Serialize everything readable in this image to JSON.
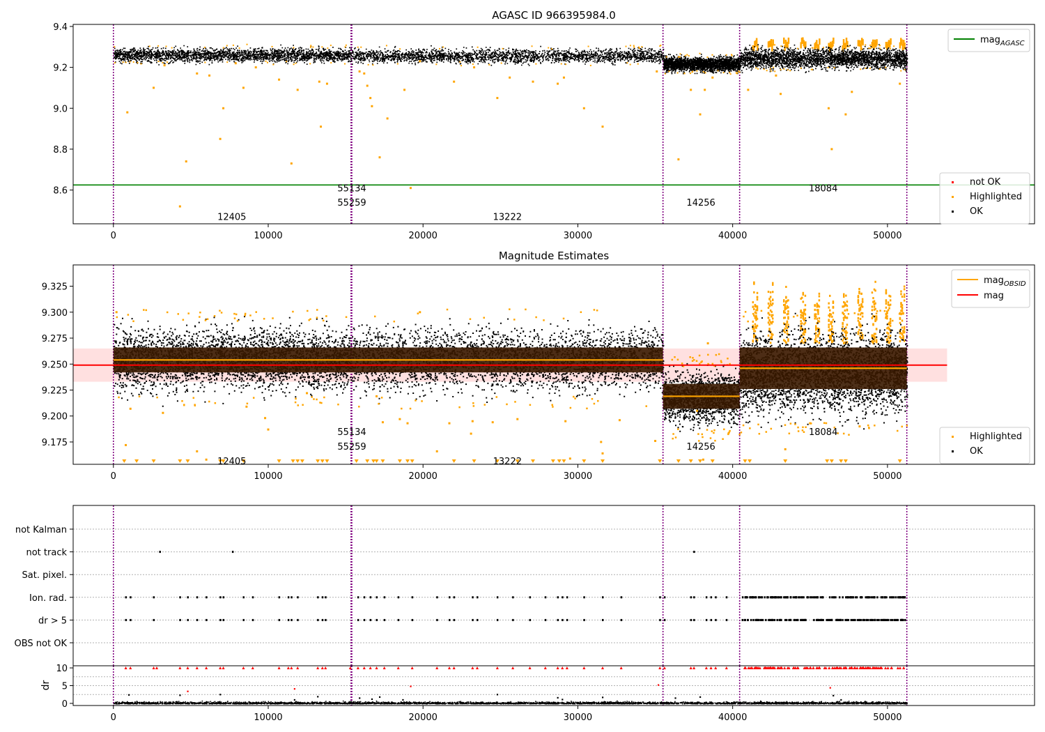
{
  "figure": {
    "background": "#ffffff"
  },
  "chart_data": [
    {
      "id": "agasc",
      "type": "scatter",
      "title": "AGASC ID 966395984.0",
      "xlim": [
        -2600,
        59500
      ],
      "ylim": [
        8.435,
        9.41
      ],
      "yticks": [
        "8.6",
        "8.8",
        "9.0",
        "9.2",
        "9.4"
      ],
      "ytick_values": [
        8.6,
        8.8,
        9.0,
        9.2,
        9.4
      ],
      "xticks": [
        "0",
        "10000",
        "20000",
        "30000",
        "40000",
        "50000"
      ],
      "xtick_values": [
        0,
        10000,
        20000,
        30000,
        40000,
        50000
      ],
      "vlines": [
        0,
        15350,
        15400,
        35500,
        40450,
        51250
      ],
      "hline": {
        "name": "mag$_{AGASC}$",
        "label": "mag",
        "sub": "AGASC",
        "value": 8.625,
        "color": "#008000"
      },
      "bands": [
        {
          "x0": 0,
          "x1": 15350,
          "center": 9.262,
          "width": 0.035
        },
        {
          "x0": 15400,
          "x1": 35500,
          "center": 9.258,
          "width": 0.035
        },
        {
          "x0": 35500,
          "x1": 40450,
          "center": 9.218,
          "width": 0.035
        },
        {
          "x0": 40450,
          "x1": 51250,
          "center": 9.245,
          "width": 0.05
        }
      ],
      "highlighted_points": [
        [
          900,
          8.98
        ],
        [
          2600,
          9.1
        ],
        [
          3300,
          9.21
        ],
        [
          4300,
          8.52
        ],
        [
          4700,
          8.74
        ],
        [
          5400,
          9.17
        ],
        [
          6200,
          9.16
        ],
        [
          6900,
          8.85
        ],
        [
          7100,
          9.0
        ],
        [
          7900,
          9.22
        ],
        [
          8400,
          9.1
        ],
        [
          9200,
          9.2
        ],
        [
          10700,
          9.14
        ],
        [
          11500,
          8.73
        ],
        [
          11900,
          9.09
        ],
        [
          13300,
          9.13
        ],
        [
          13400,
          8.91
        ],
        [
          13800,
          9.12
        ],
        [
          15900,
          9.18
        ],
        [
          16200,
          9.17
        ],
        [
          16400,
          9.11
        ],
        [
          16600,
          9.05
        ],
        [
          17200,
          8.76
        ],
        [
          16700,
          9.01
        ],
        [
          17700,
          8.95
        ],
        [
          18800,
          9.09
        ],
        [
          19200,
          8.61
        ],
        [
          19800,
          9.23
        ],
        [
          22000,
          9.13
        ],
        [
          23300,
          9.2
        ],
        [
          24800,
          9.05
        ],
        [
          25600,
          9.15
        ],
        [
          27100,
          9.13
        ],
        [
          28700,
          9.12
        ],
        [
          29100,
          9.15
        ],
        [
          30400,
          9.0
        ],
        [
          31600,
          8.91
        ],
        [
          35100,
          9.18
        ],
        [
          36500,
          8.75
        ],
        [
          37300,
          9.09
        ],
        [
          37900,
          8.97
        ],
        [
          38200,
          9.09
        ],
        [
          38700,
          9.15
        ],
        [
          41000,
          9.09
        ],
        [
          42800,
          9.16
        ],
        [
          43100,
          9.07
        ],
        [
          46200,
          9.0
        ],
        [
          46400,
          8.8
        ],
        [
          47300,
          8.97
        ],
        [
          47700,
          9.08
        ],
        [
          50800,
          9.12
        ]
      ],
      "annotations": [
        {
          "text": "12405",
          "x": 7650,
          "y": 8.47
        },
        {
          "text": "55134",
          "x": 15400,
          "y": 8.61
        },
        {
          "text": "55259",
          "x": 15400,
          "y": 8.54
        },
        {
          "text": "13222",
          "x": 25450,
          "y": 8.47
        },
        {
          "text": "14256",
          "x": 37950,
          "y": 8.54
        },
        {
          "text": "18084",
          "x": 45850,
          "y": 8.61
        }
      ],
      "legend_line": {
        "entries": [
          {
            "label": "mag",
            "sub": "AGASC",
            "color": "#008000"
          }
        ]
      },
      "legend_points": {
        "entries": [
          {
            "label": "not OK",
            "color": "#ff0000"
          },
          {
            "label": "Highlighted",
            "color": "#ffa500"
          },
          {
            "label": "OK",
            "color": "#000000"
          }
        ]
      }
    },
    {
      "id": "estimates",
      "type": "scatter",
      "title": "Magnitude Estimates",
      "xlim": [
        -2600,
        59500
      ],
      "ylim": [
        9.1535,
        9.3455
      ],
      "yticks": [
        "9.175",
        "9.200",
        "9.225",
        "9.250",
        "9.275",
        "9.300",
        "9.325"
      ],
      "ytick_values": [
        9.175,
        9.2,
        9.225,
        9.25,
        9.275,
        9.3,
        9.325
      ],
      "xticks": [
        "0",
        "10000",
        "20000",
        "30000",
        "40000",
        "50000"
      ],
      "xtick_values": [
        0,
        10000,
        20000,
        30000,
        40000,
        50000
      ],
      "vlines": [
        0,
        15350,
        15400,
        35500,
        40450,
        51250
      ],
      "mag": {
        "value": 9.249,
        "band": [
          9.233,
          9.265
        ],
        "x_extent": [
          -2600,
          53850
        ],
        "color": "#ff0000",
        "band_color": "#ffe0e0"
      },
      "obsid_mag": [
        {
          "x0": 0,
          "x1": 15400,
          "value": 9.254,
          "band": [
            9.242,
            9.266
          ]
        },
        {
          "x0": 15400,
          "x1": 35500,
          "value": 9.254,
          "band": [
            9.242,
            9.266
          ]
        },
        {
          "x0": 35500,
          "x1": 40450,
          "value": 9.219,
          "band": [
            9.207,
            9.231
          ]
        },
        {
          "x0": 40450,
          "x1": 51250,
          "value": 9.246,
          "band": [
            9.226,
            9.266
          ]
        }
      ],
      "bands": [
        {
          "x0": 0,
          "x1": 15350,
          "center": 9.255,
          "width": 0.03
        },
        {
          "x0": 15400,
          "x1": 35500,
          "center": 9.255,
          "width": 0.03
        },
        {
          "x0": 35500,
          "x1": 40450,
          "center": 9.218,
          "width": 0.025
        },
        {
          "x0": 40450,
          "x1": 51250,
          "center": 9.242,
          "width": 0.04
        }
      ],
      "highlighted_points": [
        [
          200,
          9.3
        ],
        [
          800,
          9.172
        ],
        [
          1100,
          9.207
        ],
        [
          3200,
          9.203
        ],
        [
          5400,
          9.166
        ],
        [
          6000,
          9.158
        ],
        [
          8600,
          9.209
        ],
        [
          9800,
          9.198
        ],
        [
          10000,
          9.187
        ],
        [
          12500,
          9.222
        ],
        [
          17000,
          9.219
        ],
        [
          17400,
          9.194
        ],
        [
          18500,
          9.197
        ],
        [
          19000,
          9.193
        ],
        [
          19800,
          9.3
        ],
        [
          20900,
          9.166
        ],
        [
          21700,
          9.193
        ],
        [
          23100,
          9.183
        ],
        [
          23200,
          9.195
        ],
        [
          24500,
          9.194
        ],
        [
          26100,
          9.197
        ],
        [
          29200,
          9.195
        ],
        [
          29500,
          9.159
        ],
        [
          31600,
          9.164
        ],
        [
          31500,
          9.175
        ],
        [
          32700,
          9.196
        ],
        [
          35000,
          9.176
        ],
        [
          37700,
          9.205
        ],
        [
          38400,
          9.27
        ],
        [
          38100,
          9.158
        ],
        [
          43400,
          9.168
        ],
        [
          45000,
          9.193
        ],
        [
          48200,
          9.19
        ]
      ],
      "limit_markers": [
        700,
        1500,
        2600,
        4300,
        4800,
        6900,
        7100,
        8400,
        10700,
        11600,
        11900,
        12200,
        13200,
        13500,
        13800,
        15700,
        16400,
        16800,
        17000,
        17400,
        18500,
        19000,
        19300,
        22000,
        23300,
        24800,
        26100,
        27100,
        28400,
        28800,
        29100,
        30400,
        31600,
        35300,
        36500,
        37300,
        37900,
        38700,
        40800,
        41100,
        43400,
        46100,
        46400,
        47000,
        47300,
        50800
      ],
      "seasonal_spikes": [
        41300,
        42300,
        43300,
        44400,
        45300,
        46200,
        47100,
        48100,
        49000,
        49900,
        50800
      ],
      "annotations": [
        {
          "text": "12405",
          "x": 7650,
          "y": 9.157
        },
        {
          "text": "55134",
          "x": 15400,
          "y": 9.185
        },
        {
          "text": "55259",
          "x": 15400,
          "y": 9.171
        },
        {
          "text": "13222",
          "x": 25450,
          "y": 9.157
        },
        {
          "text": "14256",
          "x": 37950,
          "y": 9.171
        },
        {
          "text": "18084",
          "x": 45850,
          "y": 9.185
        }
      ],
      "legend_line": {
        "entries": [
          {
            "label": "mag",
            "sub": "OBSID",
            "color": "#ffa500"
          },
          {
            "label": "mag",
            "sub": "",
            "color": "#ff0000"
          }
        ]
      },
      "legend_points": {
        "entries": [
          {
            "label": "Highlighted",
            "color": "#ffa500"
          },
          {
            "label": "OK",
            "color": "#000000"
          }
        ]
      }
    },
    {
      "id": "flags",
      "type": "scatter",
      "title": "",
      "xlim": [
        -2600,
        59500
      ],
      "categories": [
        "not Kalman",
        "not track",
        "Sat. pixel.",
        "Ion. rad.",
        "dr > 5",
        "OBS not OK"
      ],
      "flag_points": {
        "not track": [
          3000,
          7700,
          37500
        ],
        "Ion. rad.": [
          800,
          1100,
          2600,
          4300,
          4800,
          5400,
          6000,
          6900,
          7100,
          8400,
          9000,
          10700,
          11300,
          11500,
          11900,
          13200,
          13500,
          13700,
          15800,
          16200,
          16600,
          17000,
          17500,
          18400,
          19300,
          20900,
          21700,
          22000,
          23200,
          23500,
          24800,
          25800,
          26900,
          27900,
          28700,
          29000,
          29300,
          30400,
          31600,
          32800,
          35300,
          35600,
          37300,
          37500,
          38300,
          38600,
          38900,
          39600
        ],
        "dr > 5": [
          800,
          1100,
          2600,
          4300,
          4800,
          5400,
          6000,
          6900,
          7100,
          8400,
          9000,
          10700,
          11300,
          11500,
          11900,
          13200,
          13500,
          13700,
          15800,
          16200,
          16600,
          17000,
          17500,
          18400,
          19300,
          20900,
          21700,
          22000,
          23200,
          23500,
          24800,
          25800,
          26900,
          27900,
          28700,
          29000,
          29300,
          30400,
          31600,
          32800,
          35300,
          35600,
          37300,
          37500,
          38300,
          38600,
          38900,
          39600
        ]
      },
      "dense_flag_range": [
        40450,
        51250
      ],
      "vlines": [
        0,
        15350,
        15400,
        35500,
        40450,
        51250
      ]
    },
    {
      "id": "dr",
      "type": "scatter",
      "ylabel": "dr",
      "xlim": [
        -2600,
        59500
      ],
      "ylim": [
        -0.6,
        10.6
      ],
      "yticks": [
        "0",
        "5",
        "10"
      ],
      "ytick_values": [
        0,
        5,
        10
      ],
      "xticks": [
        "0",
        "10000",
        "20000",
        "30000",
        "40000",
        "50000"
      ],
      "xtick_values": [
        0,
        10000,
        20000,
        30000,
        40000,
        50000
      ],
      "vlines": [
        0,
        15350,
        15400,
        35500,
        40450,
        51250
      ],
      "capped_points": [
        800,
        1100,
        2600,
        2800,
        4300,
        4800,
        5400,
        6000,
        6900,
        7100,
        8400,
        9000,
        10700,
        11300,
        11500,
        11900,
        13200,
        13500,
        13700,
        15300,
        15800,
        16200,
        16600,
        17000,
        17500,
        18400,
        19300,
        20900,
        21700,
        22000,
        23200,
        23500,
        24800,
        25800,
        26900,
        27900,
        28700,
        29000,
        29300,
        30400,
        31600,
        32800,
        35300,
        35600,
        37300,
        37500,
        38300,
        38600,
        38900,
        39600
      ],
      "outlier_points": [
        [
          4800,
          3.4
        ],
        [
          11700,
          4.1
        ],
        [
          19200,
          4.8
        ],
        [
          35200,
          5.2
        ],
        [
          46300,
          4.4
        ]
      ],
      "medium_points": [
        [
          1000,
          2.4
        ],
        [
          4300,
          2.3
        ],
        [
          6900,
          2.5
        ],
        [
          11700,
          1.0
        ],
        [
          13200,
          1.9
        ],
        [
          15900,
          1.5
        ],
        [
          16700,
          1.2
        ],
        [
          17200,
          1.8
        ],
        [
          18700,
          1.0
        ],
        [
          24800,
          2.5
        ],
        [
          28700,
          1.6
        ],
        [
          29000,
          1.1
        ],
        [
          31600,
          1.7
        ],
        [
          36300,
          1.5
        ],
        [
          37900,
          1.8
        ],
        [
          46500,
          2.2
        ],
        [
          47000,
          1.0
        ]
      ]
    }
  ]
}
